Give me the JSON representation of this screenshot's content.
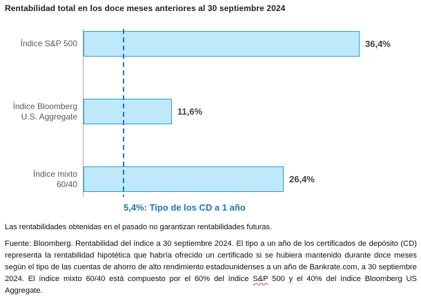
{
  "title": "Rentabilidad total en los doce meses anteriores al 30 septiembre 2024",
  "chart_data": {
    "type": "bar",
    "orientation": "horizontal",
    "title": "Rentabilidad total en los doce meses anteriores al 30 septiembre 2024",
    "categories": [
      "Índice S&P 500",
      "Índice Bloomberg U.S. Aggregate",
      "Índice mixto 60/40"
    ],
    "category_lines": [
      [
        "Índice S&P 500"
      ],
      [
        "Índice Bloomberg",
        "U.S. Aggregate"
      ],
      [
        "Índice mixto",
        "60/40"
      ]
    ],
    "values": [
      36.4,
      11.6,
      26.4
    ],
    "value_labels": [
      "36,4%",
      "11,6%",
      "26,4%"
    ],
    "xlim": [
      0,
      40
    ],
    "grid": false,
    "legend": null,
    "reference_line": {
      "value": 5.4,
      "label": "5,4%: Tipo de los CD a 1 año",
      "style": "dashed"
    },
    "colors": {
      "bar_fill": "#bee9fa",
      "bar_border": "#2a9cd4",
      "reference_blue": "#1b75bc",
      "axis_gray": "#a3a5a8",
      "value_text": "#414042",
      "category_text": "#58595b"
    }
  },
  "footnotes": {
    "disclaimer": "Las rentabilidades obtenidas en el pasado no garantizan rentabilidades futuras.",
    "source_before_misspell": "Fuente: Bloomberg. Rentabilidad del índice a 30 septiembre 2024. El tipo a un año de los certificados de depósito (CD) representa la rentabilidad hipotética que habría ofrecido un certificado si se hubiera mantenido durante doce meses según el tipo de las cuentas de ahorro de alto rendimiento estadounidenses a un año de Bankrate.com, a 30 septiembre 2024. El índice mixto 60/40 está compuesto por el 60% del índice ",
    "source_misspelled_word": "S&P",
    "source_after_misspell": " 500 y el 40% del índice Bloomberg US Aggregate."
  }
}
